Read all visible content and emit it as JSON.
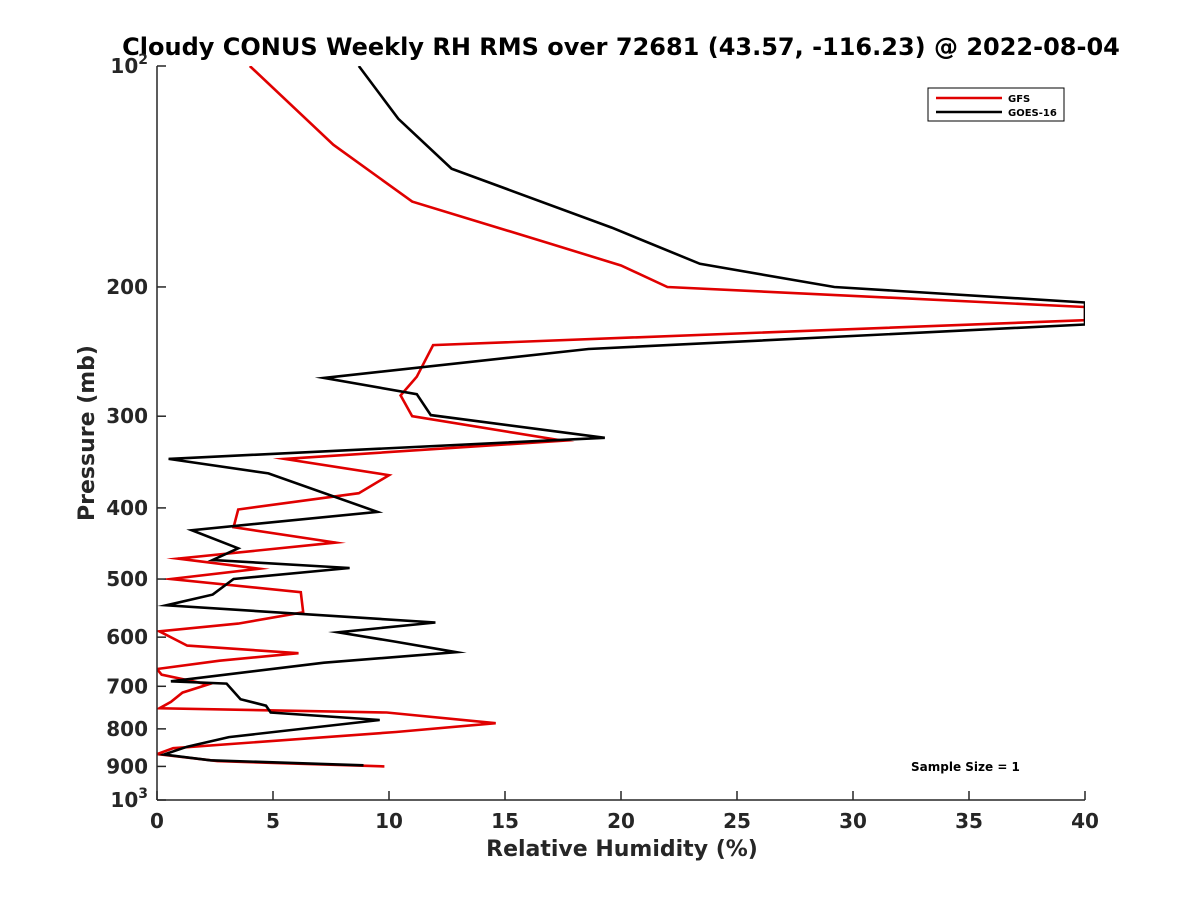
{
  "chart_data": {
    "type": "line",
    "title": "Cloudy CONUS Weekly RH RMS over 72681 (43.57, -116.23) @ 2022-08-04",
    "xlabel": "Relative Humidity (%)",
    "ylabel": "Pressure (mb)",
    "xlim": [
      0,
      40
    ],
    "ylim": [
      100,
      1000
    ],
    "y_scale": "log",
    "y_reversed": true,
    "x_ticks": [
      "0",
      "5",
      "10",
      "15",
      "20",
      "25",
      "30",
      "35",
      "40"
    ],
    "y_ticks": [
      {
        "value": 100,
        "base": "10",
        "exp": "2"
      },
      {
        "value": 200,
        "label": "200"
      },
      {
        "value": 300,
        "label": "300"
      },
      {
        "value": 400,
        "label": "400"
      },
      {
        "value": 500,
        "label": "500"
      },
      {
        "value": 600,
        "label": "600"
      },
      {
        "value": 700,
        "label": "700"
      },
      {
        "value": 800,
        "label": "800"
      },
      {
        "value": 900,
        "label": "900"
      },
      {
        "value": 1000,
        "base": "10",
        "exp": "3"
      }
    ],
    "legend_position": "top-right",
    "annotation": "Sample Size = 1",
    "series": [
      {
        "name": "GFS",
        "color": "#e00000",
        "points": [
          [
            4.0,
            100
          ],
          [
            7.6,
            128
          ],
          [
            11.0,
            153
          ],
          [
            16.8,
            174
          ],
          [
            20.0,
            187
          ],
          [
            22.0,
            200
          ],
          [
            40.0,
            213
          ],
          [
            40.0,
            222
          ],
          [
            11.9,
            240
          ],
          [
            11.2,
            265
          ],
          [
            10.5,
            281
          ],
          [
            11.0,
            300
          ],
          [
            17.5,
            324
          ],
          [
            5.5,
            343
          ],
          [
            10.0,
            361
          ],
          [
            8.7,
            382
          ],
          [
            3.5,
            402
          ],
          [
            3.3,
            425
          ],
          [
            7.7,
            446
          ],
          [
            0.9,
            469
          ],
          [
            4.4,
            484
          ],
          [
            0.6,
            500
          ],
          [
            6.2,
            521
          ],
          [
            6.3,
            555
          ],
          [
            3.5,
            575
          ],
          [
            0.1,
            589
          ],
          [
            1.3,
            616
          ],
          [
            6.1,
            631
          ],
          [
            2.7,
            646
          ],
          [
            0.0,
            663
          ],
          [
            0.2,
            675
          ],
          [
            2.2,
            696
          ],
          [
            1.1,
            714
          ],
          [
            0.6,
            735
          ],
          [
            0.1,
            750
          ],
          [
            9.9,
            760
          ],
          [
            14.6,
            786
          ],
          [
            10.3,
            808
          ],
          [
            0.7,
            850
          ],
          [
            0.0,
            866
          ],
          [
            2.6,
            885
          ],
          [
            9.8,
            900
          ]
        ]
      },
      {
        "name": "GOES-16",
        "color": "#000000",
        "points": [
          [
            8.7,
            100
          ],
          [
            10.4,
            118
          ],
          [
            12.7,
            138
          ],
          [
            19.6,
            166
          ],
          [
            23.4,
            186
          ],
          [
            29.2,
            200
          ],
          [
            40.0,
            210
          ],
          [
            40.0,
            225
          ],
          [
            18.6,
            243
          ],
          [
            7.2,
            266
          ],
          [
            11.2,
            280
          ],
          [
            11.8,
            299
          ],
          [
            19.3,
            321
          ],
          [
            0.5,
            343
          ],
          [
            4.8,
            359
          ],
          [
            9.5,
            405
          ],
          [
            1.5,
            429
          ],
          [
            3.5,
            454
          ],
          [
            2.4,
            471
          ],
          [
            8.3,
            483
          ],
          [
            3.3,
            500
          ],
          [
            2.4,
            525
          ],
          [
            0.4,
            543
          ],
          [
            12.0,
            573
          ],
          [
            7.8,
            591
          ],
          [
            10.2,
            608
          ],
          [
            12.9,
            629
          ],
          [
            7.2,
            650
          ],
          [
            0.6,
            689
          ],
          [
            3.0,
            694
          ],
          [
            3.6,
            729
          ],
          [
            4.7,
            744
          ],
          [
            4.9,
            760
          ],
          [
            9.6,
            778
          ],
          [
            3.1,
            821
          ],
          [
            1.3,
            846
          ],
          [
            0.3,
            867
          ],
          [
            2.3,
            883
          ],
          [
            8.9,
            897
          ]
        ]
      }
    ]
  }
}
